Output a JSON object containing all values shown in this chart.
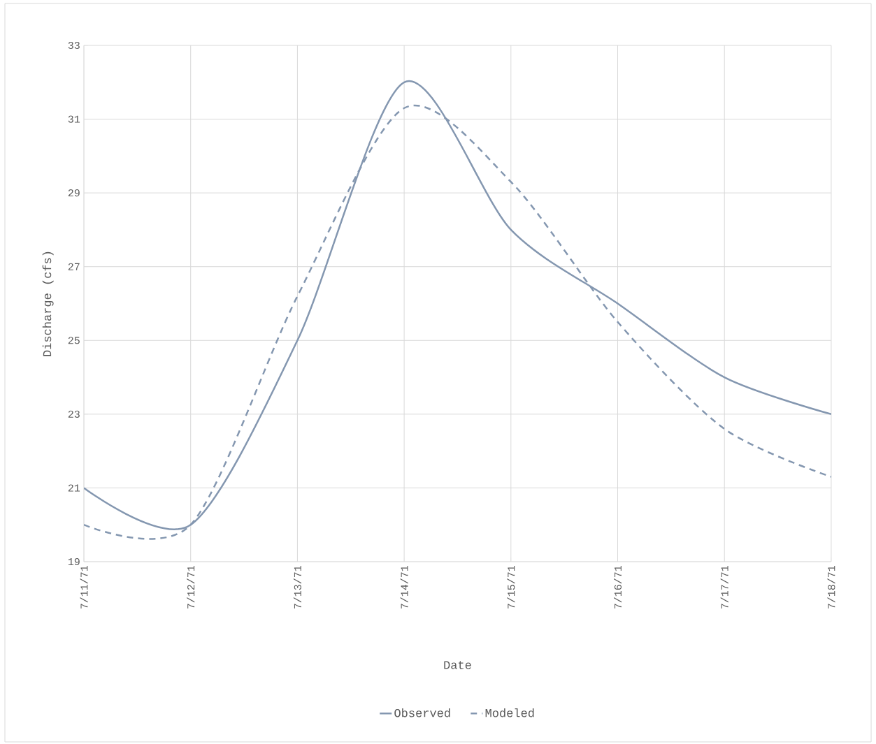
{
  "chart_data": {
    "type": "line",
    "xlabel": "Date",
    "ylabel": "Discharge (cfs)",
    "x": [
      "1971-07-11",
      "1971-07-12",
      "1971-07-13",
      "1971-07-14",
      "1971-07-15",
      "1971-07-16",
      "1971-07-17",
      "1971-07-18"
    ],
    "series": [
      {
        "name": "Observed",
        "color": "#8497b0",
        "line_style": "solid",
        "values": [
          21,
          20,
          25,
          32,
          28,
          26,
          24,
          23
        ]
      },
      {
        "name": "Modeled",
        "color": "#8497b0",
        "line_style": "dashed",
        "values": [
          20,
          20,
          26.2,
          31.3,
          29.3,
          25.5,
          22.6,
          21.3
        ]
      }
    ],
    "xlim": [
      "1971-07-11",
      "1971-07-18"
    ],
    "xticks": [
      {
        "value": "1971-07-11",
        "label": "7/11/71"
      },
      {
        "value": "1971-07-12",
        "label": "7/12/71"
      },
      {
        "value": "1971-07-13",
        "label": "7/13/71"
      },
      {
        "value": "1971-07-14",
        "label": "7/14/71"
      },
      {
        "value": "1971-07-15",
        "label": "7/15/71"
      },
      {
        "value": "1971-07-16",
        "label": "7/16/71"
      },
      {
        "value": "1971-07-17",
        "label": "7/17/71"
      },
      {
        "value": "1971-07-18",
        "label": "7/18/71"
      }
    ],
    "ylim": [
      19,
      33
    ],
    "yticks": [
      19,
      21,
      23,
      25,
      27,
      29,
      31,
      33
    ],
    "grid": true,
    "legend": "bottom",
    "marker": "none"
  }
}
